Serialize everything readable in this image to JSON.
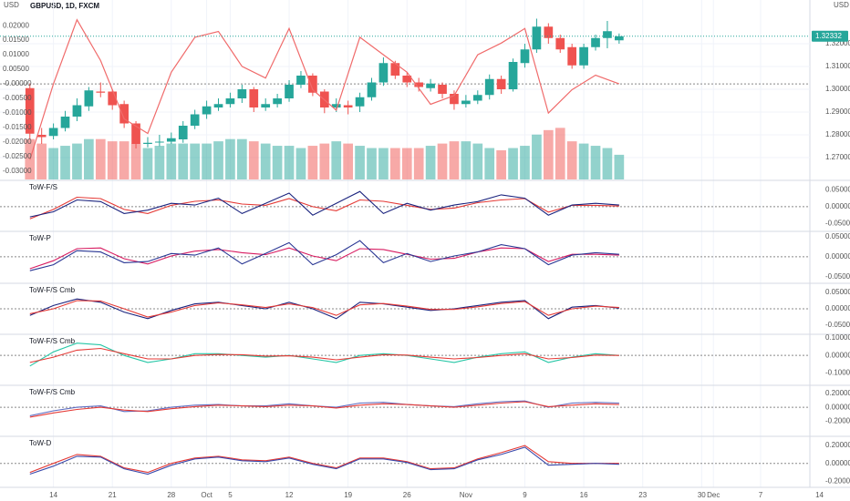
{
  "chart_data": [
    {
      "type": "candlestick",
      "title": "GBPUSD, 1D, FXCM",
      "left_axis_label": "USD",
      "right_axis_label": "USD",
      "last_price": 1.32332,
      "last_price_label": "1.32332",
      "up_color": "#26a69a",
      "down_color": "#ef5350",
      "x": [
        0,
        1,
        2,
        3,
        4,
        5,
        6,
        7,
        8,
        9,
        10,
        11,
        12,
        13,
        14,
        15,
        16,
        17,
        18,
        19,
        20,
        21,
        22,
        23,
        24,
        25,
        26,
        27,
        28,
        29,
        30,
        31,
        32,
        33,
        34,
        35,
        36,
        37,
        38,
        39,
        40,
        41,
        42,
        43,
        44,
        45,
        46,
        47,
        48,
        49,
        50
      ],
      "open": [
        1.3005,
        1.28,
        1.2795,
        1.283,
        1.288,
        1.2925,
        1.299,
        1.299,
        1.2935,
        1.285,
        1.276,
        1.277,
        1.277,
        1.278,
        1.284,
        1.289,
        1.292,
        1.2935,
        1.296,
        1.3,
        1.292,
        1.2935,
        1.296,
        1.302,
        1.306,
        1.299,
        1.292,
        1.293,
        1.2925,
        1.2965,
        1.303,
        1.3115,
        1.306,
        1.303,
        1.3005,
        1.302,
        1.298,
        1.2935,
        1.295,
        1.2975,
        1.3045,
        1.3,
        1.3115,
        1.3175,
        1.3275,
        1.3225,
        1.3185,
        1.3105,
        1.3185,
        1.3225,
        1.3215
      ],
      "high": [
        1.3025,
        1.283,
        1.285,
        1.2905,
        1.296,
        1.301,
        1.303,
        1.3,
        1.295,
        1.286,
        1.279,
        1.28,
        1.281,
        1.286,
        1.291,
        1.295,
        1.296,
        1.2985,
        1.302,
        1.301,
        1.296,
        1.298,
        1.304,
        1.308,
        1.307,
        1.3,
        1.296,
        1.295,
        1.2985,
        1.305,
        1.314,
        1.3125,
        1.3075,
        1.305,
        1.3045,
        1.303,
        1.2995,
        1.2975,
        1.2995,
        1.3065,
        1.306,
        1.3135,
        1.32,
        1.331,
        1.329,
        1.324,
        1.32,
        1.32,
        1.324,
        1.33,
        1.3245
      ],
      "low": [
        1.278,
        1.276,
        1.278,
        1.2815,
        1.286,
        1.2905,
        1.2965,
        1.291,
        1.283,
        1.274,
        1.2745,
        1.275,
        1.276,
        1.2765,
        1.2825,
        1.287,
        1.2905,
        1.292,
        1.294,
        1.29,
        1.2905,
        1.292,
        1.2945,
        1.3005,
        1.297,
        1.2895,
        1.29,
        1.289,
        1.29,
        1.295,
        1.3015,
        1.3045,
        1.301,
        1.299,
        1.299,
        1.296,
        1.291,
        1.292,
        1.2935,
        1.2955,
        1.298,
        1.299,
        1.3095,
        1.316,
        1.32,
        1.316,
        1.309,
        1.309,
        1.317,
        1.318,
        1.32
      ],
      "close": [
        1.2805,
        1.279,
        1.283,
        1.288,
        1.293,
        1.2995,
        1.2985,
        1.293,
        1.285,
        1.276,
        1.2765,
        1.277,
        1.2785,
        1.284,
        1.289,
        1.2925,
        1.2935,
        1.296,
        1.3,
        1.292,
        1.2935,
        1.296,
        1.302,
        1.306,
        1.2985,
        1.292,
        1.2935,
        1.292,
        1.2965,
        1.303,
        1.3115,
        1.306,
        1.303,
        1.301,
        1.3025,
        1.298,
        1.2935,
        1.295,
        1.2975,
        1.3045,
        1.3,
        1.312,
        1.3175,
        1.3275,
        1.3225,
        1.3175,
        1.3105,
        1.3185,
        1.3225,
        1.3255,
        1.3233
      ],
      "volume": [
        18,
        16,
        14,
        15,
        16,
        18,
        18,
        17,
        17,
        16,
        14,
        15,
        16,
        16,
        16,
        16,
        17,
        18,
        18,
        17,
        16,
        15,
        15,
        14,
        15,
        16,
        17,
        16,
        15,
        14,
        14,
        14,
        14,
        14,
        15,
        16,
        17,
        17,
        16,
        14,
        13,
        14,
        15,
        20,
        22,
        23,
        17,
        16,
        15,
        14,
        11
      ],
      "volume_ylim": [
        0,
        80
      ],
      "ylim": [
        1.2604,
        1.3392
      ],
      "yticks": [
        {
          "value": 1.27,
          "label": "1.27000"
        },
        {
          "value": 1.28,
          "label": "1.28000"
        },
        {
          "value": 1.29,
          "label": "1.29000"
        },
        {
          "value": 1.3,
          "label": "1.30000"
        },
        {
          "value": 1.31,
          "label": "1.31000"
        },
        {
          "value": 1.32,
          "label": "1.32000"
        }
      ],
      "y2lim": [
        -0.0328,
        0.0288
      ],
      "y2ticks": [
        {
          "value": 0.02,
          "label": "0.02000"
        },
        {
          "value": 0.015,
          "label": "0.01500"
        },
        {
          "value": 0.01,
          "label": "0.01000"
        },
        {
          "value": 0.005,
          "label": "0.00500"
        },
        {
          "value": 0,
          "label": "-0.00000"
        },
        {
          "value": -0.005,
          "label": "-0.00500"
        },
        {
          "value": -0.01,
          "label": "-0.01000"
        },
        {
          "value": -0.015,
          "label": "-0.01500"
        },
        {
          "value": -0.02,
          "label": "-0.02000"
        },
        {
          "value": -0.025,
          "label": "-0.02500"
        },
        {
          "value": -0.03,
          "label": "-0.03000"
        }
      ],
      "series": [
        {
          "color": "#f06b6b",
          "axis": "y2",
          "x": [
            0,
            2,
            4,
            6,
            8,
            10,
            12,
            14,
            16,
            18,
            20,
            22,
            24,
            26,
            28,
            30,
            32,
            34,
            36,
            38,
            40,
            42,
            44,
            46,
            48,
            50
          ],
          "values": [
            -0.026,
            0.0,
            0.022,
            0.008,
            -0.012,
            -0.017,
            0.004,
            0.016,
            0.018,
            0.006,
            0.002,
            0.019,
            -0.002,
            -0.009,
            0.016,
            0.01,
            0.004,
            -0.007,
            -0.004,
            0.01,
            0.014,
            0.019,
            -0.01,
            -0.002,
            0.003,
            0.0
          ]
        }
      ],
      "xlim": [
        -0.6,
        67.5
      ],
      "xticks": [
        {
          "value": 2,
          "label": "14"
        },
        {
          "value": 7,
          "label": "21"
        },
        {
          "value": 12,
          "label": "28"
        },
        {
          "value": 15,
          "label": "Oct"
        },
        {
          "value": 17,
          "label": "5"
        },
        {
          "value": 22,
          "label": "12"
        },
        {
          "value": 27,
          "label": "19"
        },
        {
          "value": 32,
          "label": "26"
        },
        {
          "value": 37,
          "label": "Nov"
        },
        {
          "value": 42,
          "label": "9"
        },
        {
          "value": 47,
          "label": "16"
        },
        {
          "value": 52,
          "label": "23"
        },
        {
          "value": 57,
          "label": "30"
        },
        {
          "value": 58,
          "label": "Dec"
        },
        {
          "value": 62,
          "label": "7"
        },
        {
          "value": 67,
          "label": "14"
        }
      ],
      "grid": true
    },
    {
      "type": "line",
      "title": "ToW-F/S",
      "x": [
        0,
        2,
        4,
        6,
        8,
        10,
        12,
        14,
        16,
        18,
        20,
        22,
        24,
        26,
        28,
        30,
        32,
        34,
        36,
        38,
        40,
        42,
        44,
        46,
        48,
        50
      ],
      "ylim": [
        -0.07,
        0.075
      ],
      "yticks": [
        {
          "value": 0.05,
          "label": "0.05000"
        },
        {
          "value": 0,
          "label": "0.00000"
        },
        {
          "value": -0.05,
          "label": "-0.05000"
        }
      ],
      "series": [
        {
          "color": "#e53935",
          "values": [
            -0.036,
            -0.008,
            0.028,
            0.024,
            -0.008,
            -0.02,
            0.004,
            0.016,
            0.02,
            0.008,
            0.004,
            0.024,
            0.0,
            -0.012,
            0.02,
            0.016,
            0.004,
            -0.008,
            -0.004,
            0.012,
            0.02,
            0.024,
            -0.016,
            0.004,
            0.004,
            0.002
          ]
        },
        {
          "color": "#1a237e",
          "values": [
            -0.03,
            -0.015,
            0.02,
            0.015,
            -0.02,
            -0.01,
            0.01,
            0.005,
            0.025,
            -0.02,
            0.01,
            0.04,
            -0.025,
            0.01,
            0.045,
            -0.02,
            0.01,
            -0.01,
            0.005,
            0.015,
            0.035,
            0.025,
            -0.025,
            0.005,
            0.01,
            0.005
          ]
        }
      ]
    },
    {
      "type": "line",
      "title": "ToW-P",
      "x": [
        0,
        2,
        4,
        6,
        8,
        10,
        12,
        14,
        16,
        18,
        20,
        22,
        24,
        26,
        28,
        30,
        32,
        34,
        36,
        38,
        40,
        42,
        44,
        46,
        48,
        50
      ],
      "ylim": [
        -0.064,
        0.061
      ],
      "yticks": [
        {
          "value": 0.05,
          "label": "0.05000"
        },
        {
          "value": 0,
          "label": "0.00000"
        },
        {
          "value": -0.05,
          "label": "-0.05000"
        }
      ],
      "series": [
        {
          "color": "#d81b60",
          "values": [
            -0.03,
            -0.01,
            0.02,
            0.022,
            -0.005,
            -0.018,
            0.002,
            0.014,
            0.018,
            0.01,
            0.005,
            0.022,
            0.002,
            -0.01,
            0.02,
            0.018,
            0.006,
            -0.006,
            -0.004,
            0.012,
            0.022,
            0.02,
            -0.012,
            0.006,
            0.006,
            0.004
          ]
        },
        {
          "color": "#283593",
          "values": [
            -0.035,
            -0.02,
            0.015,
            0.012,
            -0.015,
            -0.012,
            0.008,
            0.004,
            0.022,
            -0.018,
            0.008,
            0.035,
            -0.02,
            0.005,
            0.04,
            -0.015,
            0.008,
            -0.012,
            0.002,
            0.012,
            0.03,
            0.02,
            -0.02,
            0.004,
            0.01,
            0.006
          ]
        }
      ]
    },
    {
      "type": "line",
      "title": "ToW-F/S Cmb",
      "x": [
        0,
        2,
        4,
        6,
        8,
        10,
        12,
        14,
        16,
        18,
        20,
        22,
        24,
        26,
        28,
        30,
        32,
        34,
        36,
        38,
        40,
        42,
        44,
        46,
        48,
        50
      ],
      "ylim": [
        -0.075,
        0.075
      ],
      "yticks": [
        {
          "value": 0.05,
          "label": "0.05000"
        },
        {
          "value": 0,
          "label": "0.00000"
        },
        {
          "value": -0.05,
          "label": "-0.05000"
        }
      ],
      "series": [
        {
          "color": "#1a237e",
          "values": [
            -0.02,
            0.01,
            0.03,
            0.02,
            -0.01,
            -0.03,
            -0.005,
            0.015,
            0.02,
            0.01,
            0.0,
            0.02,
            0.0,
            -0.03,
            0.02,
            0.015,
            0.005,
            -0.005,
            0.0,
            0.01,
            0.02,
            0.025,
            -0.03,
            0.005,
            0.01,
            0.002
          ]
        },
        {
          "color": "#e53935",
          "values": [
            -0.015,
            0.0,
            0.025,
            0.024,
            0.0,
            -0.025,
            -0.01,
            0.01,
            0.018,
            0.012,
            0.004,
            0.015,
            0.004,
            -0.02,
            0.012,
            0.016,
            0.008,
            -0.002,
            -0.002,
            0.006,
            0.016,
            0.022,
            -0.02,
            0.0,
            0.008,
            0.004
          ]
        }
      ]
    },
    {
      "type": "line",
      "title": "ToW-F/S Cmb",
      "x": [
        0,
        2,
        4,
        6,
        8,
        10,
        12,
        14,
        16,
        18,
        20,
        22,
        24,
        26,
        28,
        30,
        32,
        34,
        36,
        38,
        40,
        42,
        44,
        46,
        48,
        50
      ],
      "ylim": [
        -0.165,
        0.115
      ],
      "yticks": [
        {
          "value": 0.1,
          "label": "0.10000"
        },
        {
          "value": 0,
          "label": "0.00000"
        },
        {
          "value": -0.1,
          "label": "-0.10000"
        }
      ],
      "series": [
        {
          "color": "#26c6a6",
          "values": [
            -0.06,
            0.02,
            0.07,
            0.06,
            0.0,
            -0.04,
            -0.02,
            0.01,
            0.01,
            0.0,
            -0.01,
            0.0,
            -0.02,
            -0.04,
            0.0,
            0.01,
            0.0,
            -0.02,
            -0.04,
            -0.01,
            0.01,
            0.02,
            -0.04,
            -0.01,
            0.01,
            0.0
          ]
        },
        {
          "color": "#e53935",
          "values": [
            -0.04,
            -0.01,
            0.03,
            0.04,
            0.01,
            -0.02,
            -0.02,
            0.0,
            0.005,
            0.004,
            -0.004,
            -0.002,
            -0.01,
            -0.025,
            -0.01,
            0.004,
            0.002,
            -0.01,
            -0.02,
            -0.012,
            0.0,
            0.01,
            -0.02,
            -0.012,
            0.002,
            0.0
          ]
        }
      ]
    },
    {
      "type": "line",
      "title": "ToW-F/S Cmb",
      "x": [
        0,
        2,
        4,
        6,
        8,
        10,
        12,
        14,
        16,
        18,
        20,
        22,
        24,
        26,
        28,
        30,
        32,
        34,
        36,
        38,
        40,
        42,
        44,
        46,
        48,
        50
      ],
      "ylim": [
        -0.4,
        0.3
      ],
      "yticks": [
        {
          "value": 0.2,
          "label": "0.20000"
        },
        {
          "value": 0,
          "label": "0.00000"
        },
        {
          "value": -0.2,
          "label": "-0.20000"
        }
      ],
      "series": [
        {
          "color": "#5c6bc0",
          "values": [
            -0.12,
            -0.05,
            0.0,
            0.02,
            -0.06,
            -0.05,
            0.0,
            0.03,
            0.04,
            0.02,
            0.02,
            0.05,
            0.02,
            0.0,
            0.06,
            0.07,
            0.04,
            0.02,
            0.01,
            0.05,
            0.08,
            0.09,
            0.0,
            0.06,
            0.07,
            0.06
          ]
        },
        {
          "color": "#e53935",
          "values": [
            -0.14,
            -0.08,
            -0.03,
            0.0,
            -0.04,
            -0.06,
            -0.02,
            0.01,
            0.03,
            0.02,
            0.01,
            0.03,
            0.02,
            -0.01,
            0.03,
            0.05,
            0.04,
            0.02,
            0.0,
            0.03,
            0.06,
            0.08,
            0.01,
            0.03,
            0.05,
            0.04
          ]
        }
      ]
    },
    {
      "type": "line",
      "title": "ToW-D",
      "x": [
        0,
        2,
        4,
        6,
        8,
        10,
        12,
        14,
        16,
        18,
        20,
        22,
        24,
        26,
        28,
        30,
        32,
        34,
        36,
        38,
        40,
        42,
        44,
        46,
        48,
        50
      ],
      "ylim": [
        -0.267,
        0.292
      ],
      "yticks": [
        {
          "value": 0.2,
          "label": "0.20000"
        },
        {
          "value": 0,
          "label": "0.00000"
        },
        {
          "value": -0.2,
          "label": "-0.20000"
        }
      ],
      "series": [
        {
          "color": "#e53935",
          "values": [
            -0.1,
            0.0,
            0.1,
            0.08,
            -0.05,
            -0.1,
            0.0,
            0.06,
            0.08,
            0.04,
            0.03,
            0.07,
            0.0,
            -0.05,
            0.06,
            0.06,
            0.02,
            -0.06,
            -0.05,
            0.05,
            0.12,
            0.2,
            0.02,
            0.0,
            0.0,
            0.0
          ]
        },
        {
          "color": "#3949ab",
          "values": [
            -0.12,
            -0.03,
            0.08,
            0.07,
            -0.06,
            -0.12,
            -0.02,
            0.05,
            0.07,
            0.03,
            0.02,
            0.06,
            -0.01,
            -0.06,
            0.05,
            0.05,
            0.01,
            -0.07,
            -0.06,
            0.04,
            0.1,
            0.18,
            -0.02,
            -0.01,
            0.0,
            -0.01
          ]
        }
      ]
    }
  ]
}
